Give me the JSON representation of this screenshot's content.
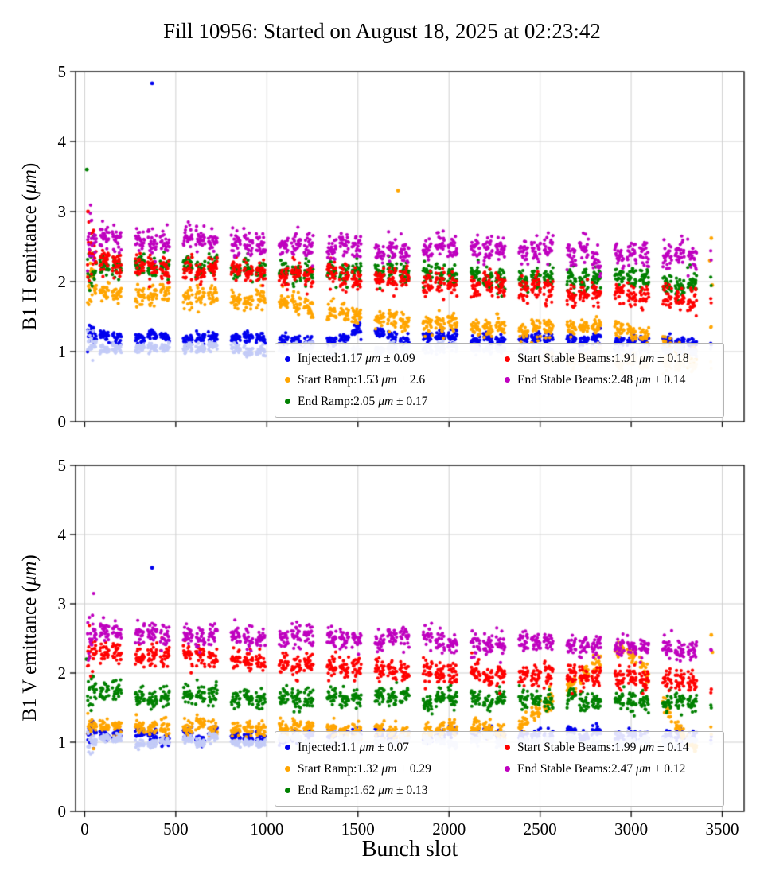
{
  "title": "Fill 10956: Started on August 18, 2025 at 02:23:42",
  "xlabel": "Bunch slot",
  "unit": "μm",
  "plus_minus": "±",
  "chart_data": [
    {
      "type": "scatter",
      "ylabel": "B1 H emittance (μm)",
      "xlim": [
        -50,
        3620
      ],
      "ylim": [
        0,
        5
      ],
      "xticks": [
        0,
        500,
        1000,
        1500,
        2000,
        2500,
        3000,
        3500
      ],
      "yticks": [
        0,
        1,
        2,
        3,
        4,
        5
      ],
      "grid": true,
      "legend_position": "lower right inside",
      "series": [
        {
          "name": "Injected",
          "color": "#0000ee",
          "mean": "1.17",
          "std": "0.09",
          "sigma": 0.04,
          "trend": [
            [
              0,
              1.25
            ],
            [
              200,
              1.2
            ],
            [
              800,
              1.19
            ],
            [
              1400,
              1.17
            ],
            [
              1500,
              1.26
            ],
            [
              1700,
              1.2
            ],
            [
              2600,
              1.17
            ],
            [
              3450,
              1.15
            ]
          ],
          "outliers": [
            [
              370,
              4.83
            ]
          ],
          "in_legend": true
        },
        {
          "name": "Start Ramp",
          "color": "#ffa500",
          "mean": "1.53",
          "std": "2.6",
          "sigma": 0.07,
          "trend": [
            [
              0,
              1.9
            ],
            [
              300,
              1.8
            ],
            [
              700,
              1.75
            ],
            [
              1100,
              1.7
            ],
            [
              1500,
              1.5
            ],
            [
              1900,
              1.4
            ],
            [
              2300,
              1.33
            ],
            [
              2800,
              1.35
            ],
            [
              3000,
              1.3
            ],
            [
              3200,
              1.08
            ],
            [
              3350,
              0.95
            ],
            [
              3450,
              1.3
            ]
          ],
          "outliers": [
            [
              1720,
              3.3
            ],
            [
              3440,
              2.62
            ],
            [
              3432,
              2.3
            ],
            [
              3445,
              1.95
            ]
          ],
          "in_legend": true
        },
        {
          "name": "End Ramp",
          "color": "#008000",
          "mean": "2.05",
          "std": "0.17",
          "sigma": 0.08,
          "trend": [
            [
              0,
              2.22
            ],
            [
              600,
              2.2
            ],
            [
              1200,
              2.15
            ],
            [
              1800,
              2.1
            ],
            [
              2400,
              2.05
            ],
            [
              3000,
              2.0
            ],
            [
              3450,
              1.93
            ]
          ],
          "outliers": [
            [
              12,
              3.6
            ]
          ],
          "in_legend": true
        },
        {
          "name": "Start Stable Beams",
          "color": "#ff0000",
          "mean": "1.91",
          "std": "0.18",
          "sigma": 0.09,
          "trend": [
            [
              0,
              2.3
            ],
            [
              400,
              2.2
            ],
            [
              1000,
              2.15
            ],
            [
              1600,
              2.05
            ],
            [
              2200,
              1.95
            ],
            [
              2600,
              1.85
            ],
            [
              3000,
              1.8
            ],
            [
              3450,
              1.75
            ]
          ],
          "outliers": [
            [
              18,
              3.0
            ]
          ],
          "in_legend": true
        },
        {
          "name": "End Stable Beams",
          "color": "#bf00bf",
          "mean": "2.48",
          "std": "0.14",
          "sigma": 0.09,
          "trend": [
            [
              0,
              2.62
            ],
            [
              600,
              2.55
            ],
            [
              1200,
              2.5
            ],
            [
              2000,
              2.45
            ],
            [
              2600,
              2.4
            ],
            [
              3000,
              2.38
            ],
            [
              3450,
              2.33
            ]
          ],
          "outliers": [],
          "in_legend": true
        },
        {
          "name": "Injected faded",
          "color": "#c3cbf7",
          "mean": "",
          "std": "",
          "sigma": 0.035,
          "trend": [
            [
              0,
              1.07
            ],
            [
              2000,
              1.04
            ],
            [
              3450,
              1.0
            ]
          ],
          "outliers": [],
          "in_legend": false
        },
        {
          "name": "Ramp faded",
          "color": "#ffdda8",
          "mean": "",
          "std": "",
          "sigma": 0.05,
          "trend": [
            [
              2500,
              0.95
            ],
            [
              3000,
              0.85
            ],
            [
              3450,
              0.8
            ]
          ],
          "xrange": [
            2500,
            3450
          ],
          "outliers": [],
          "in_legend": false
        }
      ]
    },
    {
      "type": "scatter",
      "ylabel": "B1 V emittance (μm)",
      "xlim": [
        -50,
        3620
      ],
      "ylim": [
        0,
        5
      ],
      "xticks": [
        0,
        500,
        1000,
        1500,
        2000,
        2500,
        3000,
        3500
      ],
      "yticks": [
        0,
        1,
        2,
        3,
        4,
        5
      ],
      "grid": true,
      "legend_position": "lower right inside",
      "series": [
        {
          "name": "Injected",
          "color": "#0000ee",
          "mean": "1.1",
          "std": "0.07",
          "sigma": 0.04,
          "trend": [
            [
              0,
              1.12
            ],
            [
              500,
              1.08
            ],
            [
              1000,
              1.1
            ],
            [
              2000,
              1.1
            ],
            [
              3450,
              1.08
            ]
          ],
          "outliers": [
            [
              370,
              3.52
            ]
          ],
          "in_legend": true
        },
        {
          "name": "Start Ramp",
          "color": "#ffa500",
          "mean": "1.32",
          "std": "0.29",
          "sigma": 0.06,
          "trend": [
            [
              0,
              1.25
            ],
            [
              500,
              1.2
            ],
            [
              1500,
              1.18
            ],
            [
              2300,
              1.2
            ],
            [
              2500,
              1.45
            ],
            [
              2700,
              1.9
            ],
            [
              2850,
              2.25
            ],
            [
              2950,
              2.4
            ],
            [
              3050,
              2.15
            ],
            [
              3150,
              1.7
            ],
            [
              3250,
              1.2
            ],
            [
              3350,
              0.95
            ],
            [
              3450,
              1.1
            ]
          ],
          "outliers": [
            [
              3440,
              2.55
            ],
            [
              3446,
              2.3
            ]
          ],
          "in_legend": true
        },
        {
          "name": "End Ramp",
          "color": "#008000",
          "mean": "1.62",
          "std": "0.13",
          "sigma": 0.07,
          "trend": [
            [
              0,
              1.75
            ],
            [
              300,
              1.68
            ],
            [
              1000,
              1.65
            ],
            [
              2000,
              1.63
            ],
            [
              3000,
              1.6
            ],
            [
              3450,
              1.57
            ]
          ],
          "outliers": [
            [
              10,
              2.2
            ]
          ],
          "in_legend": true
        },
        {
          "name": "Start Stable Beams",
          "color": "#ff0000",
          "mean": "1.99",
          "std": "0.14",
          "sigma": 0.08,
          "trend": [
            [
              0,
              2.3
            ],
            [
              400,
              2.25
            ],
            [
              1000,
              2.15
            ],
            [
              1600,
              2.05
            ],
            [
              2200,
              2.0
            ],
            [
              2800,
              1.95
            ],
            [
              3450,
              1.85
            ]
          ],
          "outliers": [],
          "in_legend": true
        },
        {
          "name": "End Stable Beams",
          "color": "#bf00bf",
          "mean": "2.47",
          "std": "0.12",
          "sigma": 0.08,
          "trend": [
            [
              0,
              2.6
            ],
            [
              600,
              2.55
            ],
            [
              1400,
              2.5
            ],
            [
              2200,
              2.45
            ],
            [
              2800,
              2.4
            ],
            [
              3450,
              2.33
            ]
          ],
          "outliers": [],
          "in_legend": true
        },
        {
          "name": "Injected faded",
          "color": "#c3cbf7",
          "mean": "",
          "std": "",
          "sigma": 0.03,
          "trend": [
            [
              0,
              1.02
            ],
            [
              3450,
              1.0
            ]
          ],
          "outliers": [],
          "in_legend": false
        }
      ]
    }
  ]
}
